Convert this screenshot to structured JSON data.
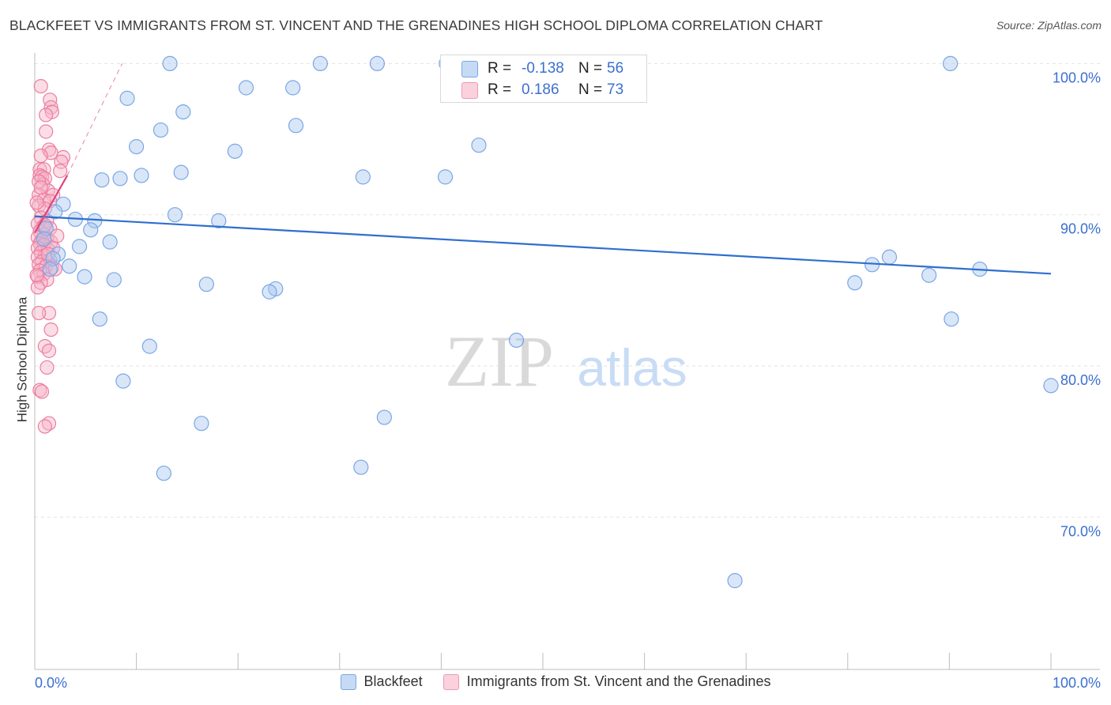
{
  "title": "BLACKFEET VS IMMIGRANTS FROM ST. VINCENT AND THE GRENADINES HIGH SCHOOL DIPLOMA CORRELATION CHART",
  "source": "Source: ZipAtlas.com",
  "watermark": {
    "zip": "ZIP",
    "atlas": "atlas"
  },
  "colors": {
    "blue_fill": "#a9c7f0",
    "blue_stroke": "#7aa6e6",
    "blue_line": "#2f6fce",
    "pink_fill": "#f7b3c8",
    "pink_stroke": "#ec7ea1",
    "pink_line": "#e0457a",
    "accent_text": "#3b6fd1",
    "grid": "#e3e3e3"
  },
  "stats": [
    {
      "series": "Blackfeet",
      "r_label": "R =",
      "r_value": "-0.138",
      "n_label": "N =",
      "n_value": "56"
    },
    {
      "series": "Immigrants from St. Vincent and the Grenadines",
      "r_label": "R =",
      "r_value": "0.186",
      "n_label": "N =",
      "n_value": "73"
    }
  ],
  "chart_data": {
    "type": "scatter",
    "title": "BLACKFEET VS IMMIGRANTS FROM ST. VINCENT AND THE GRENADINES HIGH SCHOOL DIPLOMA CORRELATION CHART",
    "xlabel": "",
    "ylabel": "High School Diploma",
    "xlim": [
      0,
      100
    ],
    "ylim": [
      61.0,
      101.5
    ],
    "x_tick_labels": [
      "0.0%",
      "100.0%"
    ],
    "y_ticks": [
      70,
      80,
      90,
      100
    ],
    "y_tick_labels": [
      "70.0%",
      "80.0%",
      "90.0%",
      "100.0%"
    ],
    "grid": true,
    "legend_position": "bottom",
    "series": [
      {
        "name": "Blackfeet",
        "color": "#a9c7f0",
        "trend": {
          "x0": 0,
          "y0": 89.9,
          "x1": 100,
          "y1": 86.1
        },
        "points": [
          [
            13.3,
            100.0
          ],
          [
            28.1,
            100.0
          ],
          [
            33.7,
            100.0
          ],
          [
            40.5,
            100.0
          ],
          [
            90.1,
            100.0
          ],
          [
            20.8,
            98.4
          ],
          [
            25.4,
            98.4
          ],
          [
            9.1,
            97.7
          ],
          [
            14.6,
            96.8
          ],
          [
            25.7,
            95.9
          ],
          [
            12.4,
            95.6
          ],
          [
            43.7,
            94.6
          ],
          [
            10.0,
            94.5
          ],
          [
            19.7,
            94.2
          ],
          [
            14.4,
            92.8
          ],
          [
            10.5,
            92.6
          ],
          [
            8.4,
            92.4
          ],
          [
            6.6,
            92.3
          ],
          [
            32.3,
            92.5
          ],
          [
            40.4,
            92.5
          ],
          [
            2.8,
            90.7
          ],
          [
            13.8,
            90.0
          ],
          [
            4.0,
            89.7
          ],
          [
            5.9,
            89.6
          ],
          [
            18.1,
            89.6
          ],
          [
            5.5,
            89.0
          ],
          [
            7.4,
            88.2
          ],
          [
            4.4,
            87.9
          ],
          [
            2.3,
            87.4
          ],
          [
            1.8,
            87.1
          ],
          [
            84.1,
            87.2
          ],
          [
            82.4,
            86.7
          ],
          [
            3.4,
            86.6
          ],
          [
            1.5,
            86.4
          ],
          [
            93.0,
            86.4
          ],
          [
            88.0,
            86.0
          ],
          [
            4.9,
            85.9
          ],
          [
            7.8,
            85.7
          ],
          [
            16.9,
            85.4
          ],
          [
            80.7,
            85.5
          ],
          [
            23.7,
            85.1
          ],
          [
            23.1,
            84.9
          ],
          [
            6.4,
            83.1
          ],
          [
            90.2,
            83.1
          ],
          [
            47.4,
            81.7
          ],
          [
            11.3,
            81.3
          ],
          [
            8.7,
            79.0
          ],
          [
            100.0,
            78.7
          ],
          [
            34.4,
            76.6
          ],
          [
            16.4,
            76.2
          ],
          [
            12.7,
            72.9
          ],
          [
            32.1,
            73.3
          ],
          [
            68.9,
            65.8
          ],
          [
            1.1,
            89.1
          ],
          [
            0.9,
            88.4
          ],
          [
            2.0,
            90.2
          ]
        ]
      },
      {
        "name": "Immigrants from St. Vincent and the Grenadines",
        "color": "#f7b3c8",
        "trend": {
          "x0": 0,
          "y0": 88.8,
          "x1": 3.2,
          "y1": 92.6,
          "dash_x1": 8.6,
          "dash_y1": 100.0
        },
        "points": [
          [
            0.6,
            98.5
          ],
          [
            1.5,
            97.6
          ],
          [
            1.6,
            97.1
          ],
          [
            1.7,
            96.8
          ],
          [
            1.1,
            96.6
          ],
          [
            1.1,
            95.5
          ],
          [
            1.4,
            94.3
          ],
          [
            1.6,
            94.1
          ],
          [
            2.8,
            93.8
          ],
          [
            0.6,
            93.9
          ],
          [
            2.6,
            93.5
          ],
          [
            0.5,
            93.0
          ],
          [
            0.9,
            93.0
          ],
          [
            0.5,
            92.6
          ],
          [
            2.5,
            92.9
          ],
          [
            0.7,
            92.5
          ],
          [
            1.0,
            92.4
          ],
          [
            0.8,
            92.0
          ],
          [
            1.3,
            91.6
          ],
          [
            0.4,
            91.3
          ],
          [
            1.8,
            91.3
          ],
          [
            0.9,
            91.0
          ],
          [
            1.5,
            90.9
          ],
          [
            0.4,
            90.6
          ],
          [
            1.0,
            90.4
          ],
          [
            0.6,
            89.8
          ],
          [
            1.2,
            89.6
          ],
          [
            0.3,
            89.4
          ],
          [
            0.8,
            89.2
          ],
          [
            1.5,
            89.1
          ],
          [
            0.5,
            88.9
          ],
          [
            0.9,
            88.7
          ],
          [
            0.3,
            88.5
          ],
          [
            1.2,
            88.4
          ],
          [
            0.7,
            88.3
          ],
          [
            1.6,
            88.2
          ],
          [
            0.5,
            88.1
          ],
          [
            0.9,
            88.0
          ],
          [
            0.3,
            87.8
          ],
          [
            1.3,
            87.7
          ],
          [
            1.8,
            87.8
          ],
          [
            0.6,
            87.5
          ],
          [
            1.0,
            87.3
          ],
          [
            0.3,
            87.2
          ],
          [
            1.5,
            87.0
          ],
          [
            0.7,
            86.9
          ],
          [
            0.4,
            86.7
          ],
          [
            1.1,
            86.6
          ],
          [
            1.7,
            86.5
          ],
          [
            0.5,
            86.3
          ],
          [
            0.9,
            86.1
          ],
          [
            0.3,
            85.9
          ],
          [
            1.2,
            85.7
          ],
          [
            0.6,
            85.5
          ],
          [
            0.3,
            85.2
          ],
          [
            1.4,
            83.5
          ],
          [
            0.4,
            83.5
          ],
          [
            1.6,
            82.4
          ],
          [
            1.0,
            81.3
          ],
          [
            1.4,
            81.0
          ],
          [
            1.2,
            79.9
          ],
          [
            0.5,
            78.4
          ],
          [
            0.7,
            78.3
          ],
          [
            1.4,
            76.2
          ],
          [
            1.0,
            76.0
          ],
          [
            2.0,
            86.4
          ],
          [
            0.2,
            90.8
          ],
          [
            2.2,
            88.6
          ],
          [
            0.2,
            86.0
          ],
          [
            0.4,
            92.2
          ],
          [
            1.0,
            89.3
          ],
          [
            0.6,
            91.8
          ],
          [
            1.3,
            87.4
          ]
        ]
      }
    ]
  },
  "legend": [
    {
      "label": "Blackfeet"
    },
    {
      "label": "Immigrants from St. Vincent and the Grenadines"
    }
  ]
}
